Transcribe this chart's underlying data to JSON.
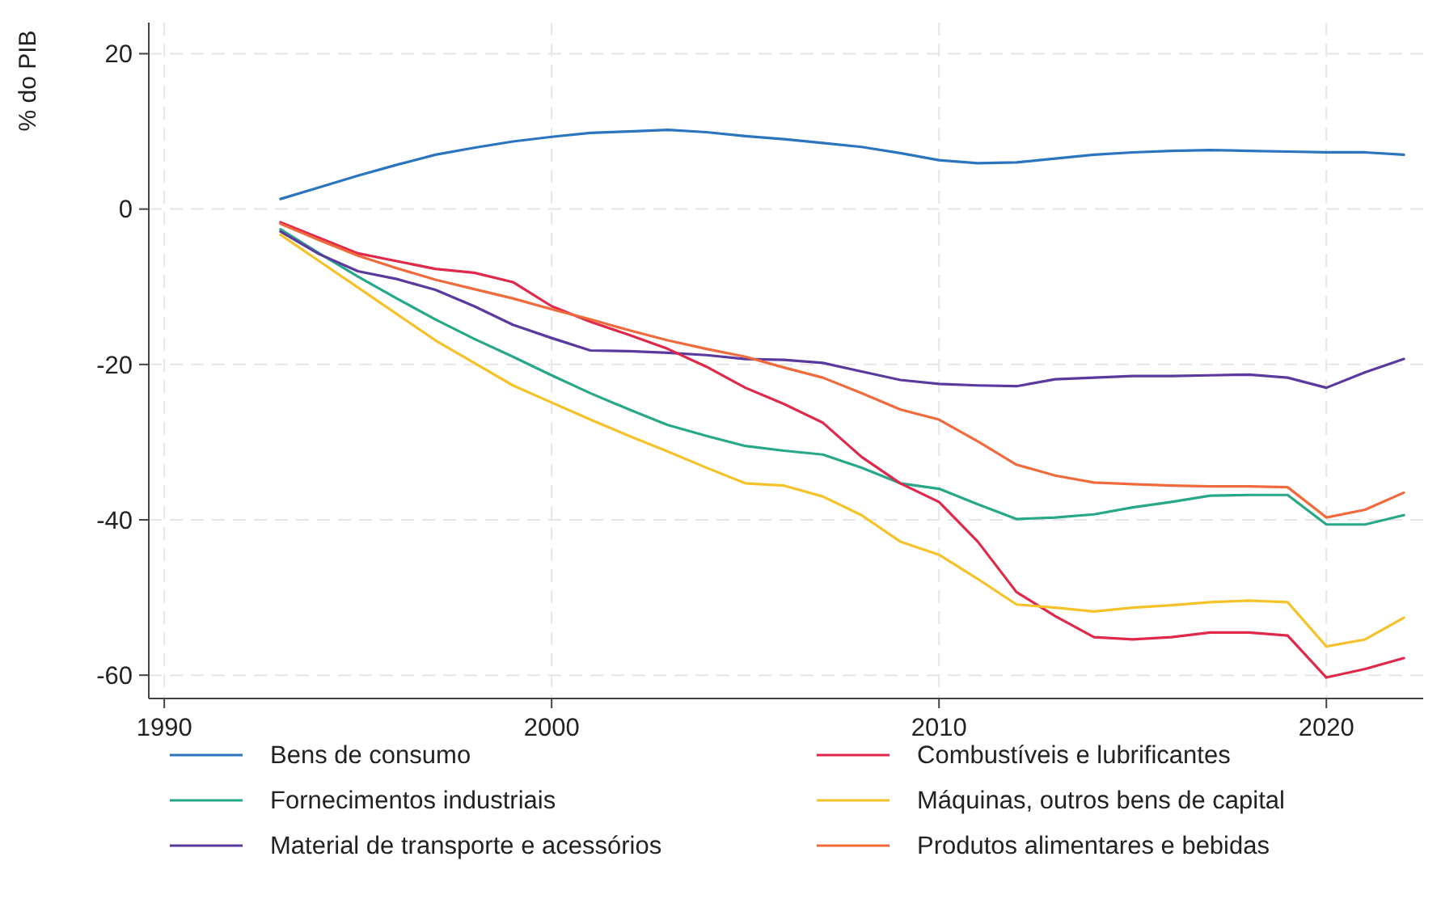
{
  "chart_data": {
    "type": "line",
    "ylabel": "% do PIB",
    "x": [
      1993,
      1994,
      1995,
      1996,
      1997,
      1998,
      1999,
      2000,
      2001,
      2002,
      2003,
      2004,
      2005,
      2006,
      2007,
      2008,
      2009,
      2010,
      2011,
      2012,
      2013,
      2014,
      2015,
      2016,
      2017,
      2018,
      2019,
      2020,
      2021,
      2022
    ],
    "xlim": [
      1989.6,
      2022.5
    ],
    "xticks": [
      1990,
      2000,
      2010,
      2020
    ],
    "ylim": [
      -63,
      24
    ],
    "yticks": [
      20,
      0,
      -20,
      -40,
      -60
    ],
    "grid": true,
    "legend": "bottom",
    "line_style": "solid",
    "series": [
      {
        "name": "Bens de consumo",
        "color": "#2a74c0",
        "values": [
          1.3,
          2.8,
          4.3,
          5.7,
          7.0,
          7.9,
          8.7,
          9.3,
          9.8,
          10.0,
          10.2,
          9.9,
          9.4,
          9.0,
          8.5,
          8.0,
          7.2,
          6.3,
          5.9,
          6.0,
          6.5,
          7.0,
          7.3,
          7.5,
          7.6,
          7.5,
          7.4,
          7.3,
          7.3,
          7.0
        ]
      },
      {
        "name": "Fornecimentos industriais",
        "color": "#26a889",
        "values": [
          -2.6,
          -5.7,
          -8.7,
          -11.5,
          -14.2,
          -16.7,
          -19.0,
          -21.4,
          -23.7,
          -25.8,
          -27.8,
          -29.2,
          -30.5,
          -31.1,
          -31.6,
          -33.3,
          -35.3,
          -36.0,
          -38.0,
          -39.9,
          -39.7,
          -39.3,
          -38.4,
          -37.7,
          -36.9,
          -36.8,
          -36.8,
          -40.6,
          -40.6,
          -39.4
        ]
      },
      {
        "name": "Material de transporte e acessórios",
        "color": "#5a3a9e",
        "values": [
          -2.9,
          -5.8,
          -8.0,
          -9.0,
          -10.4,
          -12.5,
          -14.9,
          -16.6,
          -18.2,
          -18.3,
          -18.5,
          -18.8,
          -19.3,
          -19.4,
          -19.8,
          -20.9,
          -22.0,
          -22.5,
          -22.7,
          -22.8,
          -21.9,
          -21.7,
          -21.5,
          -21.5,
          -21.4,
          -21.3,
          -21.7,
          -23.0,
          -21.0,
          -19.3
        ]
      },
      {
        "name": "Combustíveis e lubrificantes",
        "color": "#e0284a",
        "values": [
          -1.7,
          -3.7,
          -5.7,
          -6.7,
          -7.7,
          -8.2,
          -9.4,
          -12.5,
          -14.5,
          -16.2,
          -18.0,
          -20.3,
          -23.0,
          -25.1,
          -27.5,
          -31.9,
          -35.3,
          -37.7,
          -42.8,
          -49.3,
          -52.4,
          -55.1,
          -55.4,
          -55.1,
          -54.5,
          -54.5,
          -54.9,
          -60.3,
          -59.2,
          -57.8
        ]
      },
      {
        "name": "Máquinas, outros bens de capital",
        "color": "#f5c22a",
        "values": [
          -3.3,
          -6.7,
          -10.1,
          -13.5,
          -16.9,
          -19.8,
          -22.7,
          -24.9,
          -27.1,
          -29.2,
          -31.2,
          -33.3,
          -35.3,
          -35.6,
          -37.0,
          -39.4,
          -42.8,
          -44.5,
          -47.6,
          -50.9,
          -51.3,
          -51.8,
          -51.3,
          -51.0,
          -50.6,
          -50.4,
          -50.6,
          -56.3,
          -55.4,
          -52.6
        ]
      },
      {
        "name": "Produtos alimentares e bebidas",
        "color": "#f06a3c",
        "values": [
          -1.9,
          -4.0,
          -6.0,
          -7.6,
          -9.1,
          -10.3,
          -11.5,
          -12.9,
          -14.2,
          -15.6,
          -16.9,
          -18.0,
          -19.0,
          -20.4,
          -21.7,
          -23.7,
          -25.8,
          -27.1,
          -29.9,
          -32.9,
          -34.3,
          -35.2,
          -35.4,
          -35.6,
          -35.7,
          -35.7,
          -35.8,
          -39.7,
          -38.7,
          -36.5
        ]
      }
    ]
  }
}
